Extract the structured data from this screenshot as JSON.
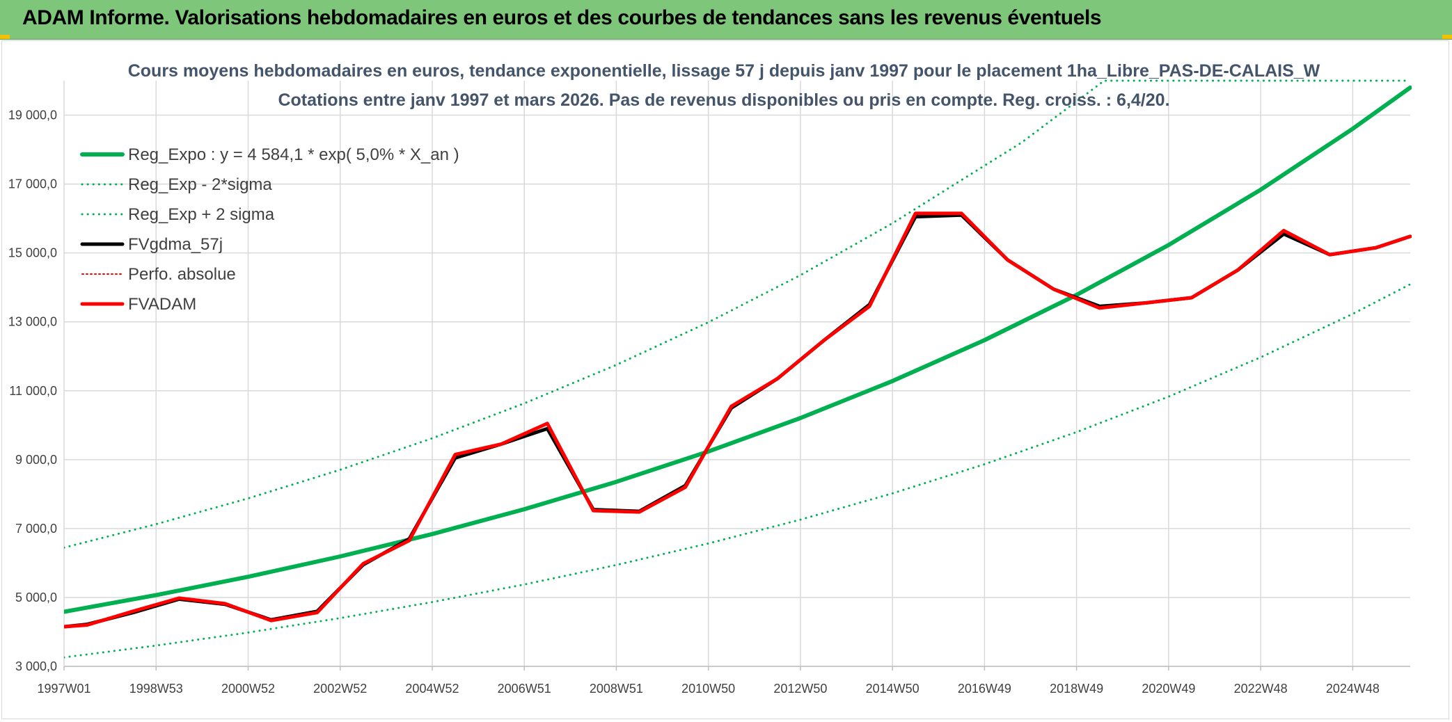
{
  "banner": {
    "title": "ADAM Informe. Valorisations hebdomadaires en euros et des courbes de tendances sans les revenus éventuels"
  },
  "chart_data": {
    "type": "line",
    "title_line1": "Cours moyens hebdomadaires en euros, tendance exponentielle, lissage 57 j depuis janv 1997 pour le placement 1ha_Libre_PAS-DE-CALAIS_W",
    "title_line2": "Cotations entre janv 1997 et mars 2026. Pas de revenus disponibles ou pris en compte. Reg. croiss. : 6,4/20.",
    "xlabel": "",
    "ylabel": "",
    "x_range": [
      1997.0,
      2026.25
    ],
    "ylim": [
      3000,
      20000
    ],
    "y_ticks": [
      3000,
      5000,
      7000,
      9000,
      11000,
      13000,
      15000,
      17000,
      19000
    ],
    "y_tick_labels": [
      "3 000,0",
      "5 000,0",
      "7 000,0",
      "9 000,0",
      "11 000,0",
      "13 000,0",
      "15 000,0",
      "17 000,0",
      "19 000,0"
    ],
    "x_ticks": [
      {
        "label": "1997W01",
        "x": 1997.0
      },
      {
        "label": "1998W53",
        "x": 1999.0
      },
      {
        "label": "2000W52",
        "x": 2001.0
      },
      {
        "label": "2002W52",
        "x": 2003.0
      },
      {
        "label": "2004W52",
        "x": 2005.0
      },
      {
        "label": "2006W51",
        "x": 2007.0
      },
      {
        "label": "2008W51",
        "x": 2009.0
      },
      {
        "label": "2010W50",
        "x": 2011.0
      },
      {
        "label": "2012W50",
        "x": 2013.0
      },
      {
        "label": "2014W50",
        "x": 2015.0
      },
      {
        "label": "2016W49",
        "x": 2017.0
      },
      {
        "label": "2018W49",
        "x": 2019.0
      },
      {
        "label": "2020W49",
        "x": 2021.0
      },
      {
        "label": "2022W48",
        "x": 2023.0
      },
      {
        "label": "2024W48",
        "x": 2025.0
      }
    ],
    "grid": true,
    "legend_position": "top-left",
    "series": [
      {
        "name": "Reg_Expo : y = 4 584,1 * exp( 5,0% *  X_an )",
        "color": "#00b050",
        "style": "solid",
        "width": 6,
        "x": [
          1997,
          1999,
          2001,
          2003,
          2005,
          2007,
          2009,
          2011,
          2013,
          2015,
          2017,
          2019,
          2021,
          2023,
          2025,
          2026.25
        ],
        "y": [
          4584,
          5067,
          5600,
          6190,
          6841,
          7561,
          8357,
          9236,
          10208,
          11282,
          12469,
          13781,
          15231,
          16834,
          18605,
          19800
        ]
      },
      {
        "name": "Reg_Exp - 2*sigma",
        "color": "#00b050",
        "style": "dotted",
        "width": 3,
        "x": [
          1997,
          1999,
          2001,
          2003,
          2005,
          2007,
          2009,
          2011,
          2013,
          2015,
          2017,
          2019,
          2021,
          2023,
          2025,
          2026.25
        ],
        "y": [
          3260,
          3603,
          3982,
          4402,
          4865,
          5377,
          5942,
          6568,
          7259,
          8022,
          8867,
          9800,
          10830,
          11970,
          13230,
          14090
        ]
      },
      {
        "name": "Reg_Exp + 2 sigma",
        "color": "#00b050",
        "style": "dotted",
        "width": 3,
        "x": [
          1997,
          1999,
          2001,
          2003,
          2005,
          2007,
          2009,
          2011,
          2013,
          2015,
          2017,
          2017.8,
          2019.6,
          2026.25
        ],
        "y": [
          6447,
          7126,
          7876,
          8705,
          9620,
          10633,
          11751,
          12988,
          14354,
          15864,
          17534,
          18200,
          20000,
          20000
        ]
      },
      {
        "name": "FVgdma_57j",
        "color": "#000000",
        "style": "solid",
        "width": 5,
        "x": [
          1997.0,
          1997.5,
          1998.5,
          1999.5,
          2000.5,
          2001.5,
          2002.5,
          2003.5,
          2004.5,
          2005.5,
          2006.5,
          2007.5,
          2008.5,
          2009.5,
          2010.5,
          2011.5,
          2012.5,
          2013.5,
          2014.5,
          2015.5,
          2016.5,
          2017.5,
          2018.5,
          2019.5,
          2020.5,
          2021.5,
          2022.5,
          2023.5,
          2024.5,
          2025.5,
          2026.25
        ],
        "y": [
          4150,
          4220,
          4560,
          4950,
          4800,
          4350,
          4600,
          5950,
          6700,
          9050,
          9450,
          9900,
          7550,
          7500,
          8250,
          10500,
          11350,
          12450,
          13500,
          16050,
          16100,
          14800,
          13950,
          13450,
          13550,
          13700,
          14500,
          15550,
          14950,
          15150,
          15480
        ]
      },
      {
        "name": "Perfo. absolue",
        "color": "#ff0000",
        "style": "dotted",
        "width": 2,
        "x": [
          1997.0,
          1997.5,
          1998.5,
          1999.5,
          2000.5,
          2001.5,
          2002.5,
          2003.5,
          2004.5,
          2005.5,
          2006.5,
          2007.5,
          2008.5,
          2009.5,
          2010.5,
          2011.5,
          2012.5,
          2013.5,
          2014.5,
          2015.5,
          2016.5,
          2017.5,
          2018.5,
          2019.5,
          2020.5,
          2021.5,
          2022.5,
          2023.5,
          2024.5,
          2025.5,
          2026.25
        ],
        "y": [
          4150,
          4200,
          4600,
          4980,
          4820,
          4330,
          4560,
          5980,
          6650,
          9150,
          9450,
          10050,
          7520,
          7480,
          8200,
          10550,
          11350,
          12450,
          13450,
          16150,
          16150,
          14800,
          13950,
          13400,
          13550,
          13700,
          14500,
          15650,
          14950,
          15150,
          15480
        ]
      },
      {
        "name": "FVADAM",
        "color": "#ff0000",
        "style": "solid",
        "width": 5,
        "x": [
          1997.0,
          1997.5,
          1998.5,
          1999.5,
          2000.5,
          2001.5,
          2002.5,
          2003.5,
          2004.5,
          2005.5,
          2006.5,
          2007.5,
          2008.5,
          2009.5,
          2010.5,
          2011.5,
          2012.5,
          2013.5,
          2014.5,
          2015.5,
          2016.5,
          2017.5,
          2018.5,
          2019.5,
          2020.5,
          2021.5,
          2022.5,
          2023.5,
          2024.5,
          2025.5,
          2026.25
        ],
        "y": [
          4150,
          4200,
          4600,
          4980,
          4820,
          4330,
          4560,
          5980,
          6650,
          9150,
          9450,
          10050,
          7520,
          7480,
          8200,
          10550,
          11350,
          12450,
          13450,
          16150,
          16150,
          14800,
          13950,
          13400,
          13550,
          13700,
          14500,
          15650,
          14950,
          15150,
          15480
        ]
      }
    ]
  }
}
